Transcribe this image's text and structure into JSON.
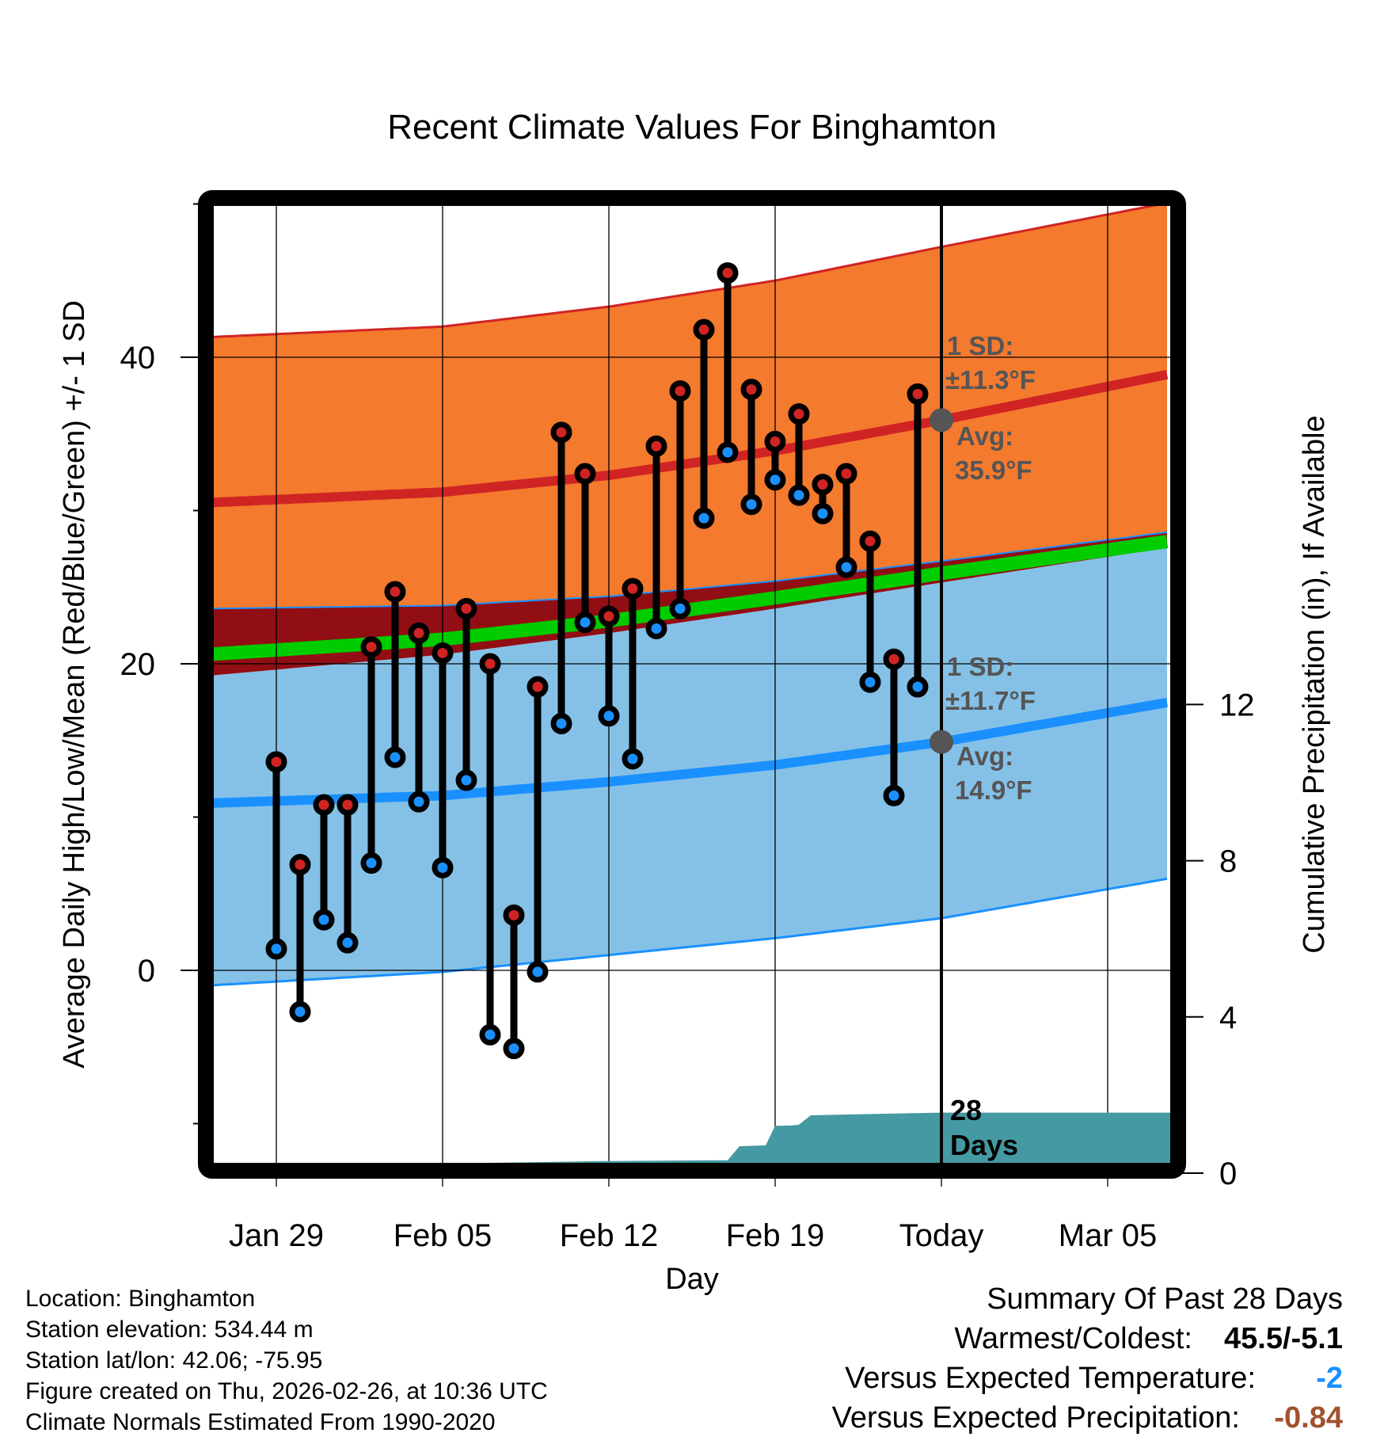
{
  "colors": {
    "high_band": "#f47a2e",
    "high_line": "#d02424",
    "overlap_band": "#910e14",
    "mean_band": "#00cc00",
    "low_band": "#85c1e7",
    "low_line": "#1a90ff",
    "precip": "#4599a2",
    "marker_high": "#d02424",
    "marker_low": "#1a90ff",
    "annot_dot": "#555555",
    "temp_anomaly": "#1a90ff",
    "precip_anomaly": "#a0522d"
  },
  "chart_data": {
    "type": "line",
    "title": "Recent Climate Values For Binghamton",
    "xlabel": "Day",
    "ylabel": "Average Daily High/Low/Mean (Red/Blue/Green) +/- 1 SD",
    "ylabel_right": "Cumulative Precipitation (in), If Available",
    "ylim": [
      -12.7,
      50
    ],
    "ylim_right": [
      0,
      24.2
    ],
    "y_ticks": [
      0,
      20,
      40
    ],
    "y_minor_ticks": [
      -10,
      10,
      30,
      50
    ],
    "y_right_ticks": [
      0,
      4,
      8,
      12
    ],
    "x_range_days_from_jan29": [
      -3.0,
      37.6
    ],
    "x_ticks": [
      {
        "label": "Jan 29",
        "day": 0
      },
      {
        "label": "Feb 05",
        "day": 7
      },
      {
        "label": "Feb 12",
        "day": 14
      },
      {
        "label": "Feb 19",
        "day": 21
      },
      {
        "label": "Today",
        "day": 28
      },
      {
        "label": "Mar 05",
        "day": 35
      }
    ],
    "grid": true,
    "normals": {
      "days": [
        -3,
        7,
        14,
        21,
        28,
        37.6
      ],
      "high_plus_sd": [
        41.3,
        42.0,
        43.3,
        45.0,
        47.2,
        50.1
      ],
      "high_mean": [
        30.5,
        31.2,
        32.3,
        33.9,
        35.9,
        38.9
      ],
      "high_minus_sd": [
        23.6,
        23.8,
        24.4,
        25.4,
        26.7,
        28.6
      ],
      "mean_mean": [
        20.6,
        21.6,
        22.8,
        24.3,
        25.9,
        28.0
      ],
      "low_plus_sd": [
        19.2,
        20.6,
        22.0,
        23.6,
        25.3,
        27.6
      ],
      "low_mean": [
        10.9,
        11.4,
        12.3,
        13.4,
        14.9,
        17.5
      ],
      "low_minus_sd": [
        -1.0,
        -0.1,
        1.0,
        2.1,
        3.4,
        6.0
      ]
    },
    "series": [
      {
        "name": "Daily High",
        "days": [
          0,
          1,
          2,
          3,
          4,
          5,
          6,
          7,
          8,
          9,
          10,
          11,
          12,
          13,
          14,
          15,
          16,
          17,
          18,
          19,
          20,
          21,
          22,
          23,
          24,
          25,
          26,
          27
        ],
        "values": [
          13.6,
          6.9,
          10.8,
          10.8,
          21.1,
          24.7,
          22.0,
          20.7,
          23.6,
          20.0,
          3.6,
          18.5,
          35.1,
          32.4,
          23.1,
          24.9,
          34.2,
          37.8,
          41.8,
          45.5,
          37.9,
          34.5,
          36.3,
          31.7,
          32.4,
          28.0,
          20.3,
          37.6
        ]
      },
      {
        "name": "Daily Low",
        "days": [
          0,
          1,
          2,
          3,
          4,
          5,
          6,
          7,
          8,
          9,
          10,
          11,
          12,
          13,
          14,
          15,
          16,
          17,
          18,
          19,
          20,
          21,
          22,
          23,
          24,
          25,
          26,
          27
        ],
        "values": [
          1.4,
          -2.7,
          3.3,
          1.8,
          7.0,
          13.9,
          11.0,
          6.7,
          12.4,
          -4.2,
          -5.1,
          -0.1,
          16.1,
          22.7,
          16.6,
          13.8,
          22.3,
          23.6,
          29.5,
          33.8,
          30.4,
          32.0,
          31.0,
          29.8,
          26.3,
          18.8,
          11.4,
          18.5
        ]
      },
      {
        "name": "Cumulative Precipitation (in)",
        "axis": "right",
        "days": [
          6,
          9,
          14,
          19,
          19.5,
          20,
          20.6,
          21,
          21.7,
          22,
          22.5,
          24,
          28,
          37.6
        ],
        "values": [
          0,
          0.19,
          0.31,
          0.33,
          0.69,
          0.7,
          0.71,
          1.21,
          1.22,
          1.24,
          1.48,
          1.5,
          1.55,
          1.55
        ]
      }
    ],
    "annotations": {
      "high_sd": "1 SD:",
      "high_sd_value": "±11.3°F",
      "high_avg": "Avg:",
      "high_avg_value": "35.9°F",
      "high_avg_temp": 35.9,
      "low_sd": "1 SD:",
      "low_sd_value": "±11.7°F",
      "low_avg": "Avg:",
      "low_avg_value": "14.9°F",
      "low_avg_temp": 14.9,
      "days_count": "28",
      "days_word": "Days"
    }
  },
  "info": {
    "location": "Location: Binghamton",
    "elevation": "Station elevation: 534.44 m",
    "latlon": "Station lat/lon: 42.06; -75.95",
    "created": "Figure created on Thu, 2026-02-26, at 10:36 UTC",
    "normals": "Climate Normals Estimated From 1990-2020"
  },
  "summary": {
    "title": "Summary Of Past 28 Days",
    "extremes_label": "Warmest/Coldest:",
    "extremes_value": "45.5/-5.1",
    "temp_label": "Versus Expected Temperature:",
    "temp_value": "-2",
    "precip_label": "Versus Expected Precipitation:",
    "precip_value": "-0.84"
  }
}
